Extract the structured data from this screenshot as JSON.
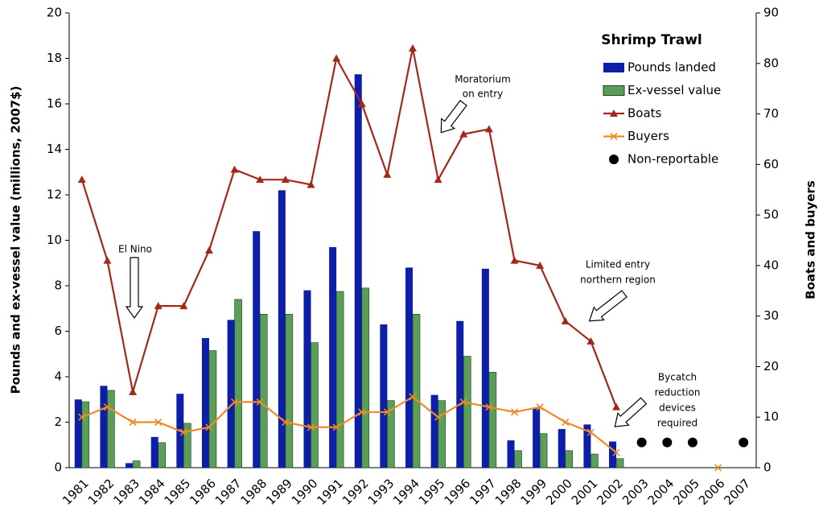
{
  "chart_data": {
    "type": "bar",
    "y_label": "Pounds and ex-vessel value (millions, 2007$)",
    "y2_label": "Boats and buyers",
    "legend_title": "Shrimp Trawl",
    "legend": "top-right",
    "categories": [
      "1981",
      "1982",
      "1983",
      "1984",
      "1985",
      "1986",
      "1987",
      "1988",
      "1989",
      "1990",
      "1991",
      "1992",
      "1993",
      "1994",
      "1995",
      "1996",
      "1997",
      "1998",
      "1999",
      "2000",
      "2001",
      "2002",
      "2003",
      "2004",
      "2005",
      "2006",
      "2007"
    ],
    "ylim": [
      0,
      20
    ],
    "yticks": [
      0,
      2,
      4,
      6,
      8,
      10,
      12,
      14,
      16,
      18,
      20
    ],
    "y2lim": [
      0,
      90
    ],
    "y2ticks": [
      0,
      10,
      20,
      30,
      40,
      50,
      60,
      70,
      80,
      90
    ],
    "series": [
      {
        "name": "Pounds landed",
        "type": "bar",
        "color": "#0d1ea8",
        "values": [
          3.0,
          3.6,
          0.2,
          1.35,
          3.25,
          5.7,
          6.5,
          10.4,
          12.2,
          7.8,
          9.7,
          17.3,
          6.3,
          8.8,
          3.2,
          6.45,
          8.75,
          1.2,
          2.6,
          1.7,
          1.9,
          1.15,
          null,
          null,
          null,
          null,
          null
        ]
      },
      {
        "name": "Ex-vessel value",
        "type": "bar",
        "color": "#5a9e5a",
        "values": [
          2.9,
          3.4,
          0.3,
          1.1,
          1.95,
          5.15,
          7.4,
          6.75,
          6.75,
          5.5,
          7.75,
          7.9,
          2.95,
          6.75,
          2.95,
          4.9,
          4.2,
          0.75,
          1.5,
          0.75,
          0.6,
          0.4,
          null,
          null,
          null,
          null,
          null
        ]
      },
      {
        "name": "Boats",
        "type": "line",
        "marker": "triangle",
        "axis": "y2",
        "color": "#a3281a",
        "values": [
          57,
          41,
          15,
          32,
          32,
          43,
          59,
          57,
          57,
          56,
          81,
          72,
          58,
          83,
          57,
          66,
          67,
          41,
          40,
          29,
          25,
          12,
          null,
          null,
          null,
          null,
          null
        ]
      },
      {
        "name": "Buyers",
        "type": "line",
        "marker": "x",
        "axis": "y2",
        "color": "#f08a24",
        "values": [
          10,
          12,
          9,
          9,
          7,
          8,
          13,
          13,
          9,
          8,
          8,
          11,
          11,
          14,
          10,
          13,
          12,
          11,
          12,
          9,
          7,
          3,
          null,
          null,
          null,
          0,
          null
        ]
      },
      {
        "name": "Non-reportable",
        "type": "scatter",
        "marker": "dot",
        "axis": "y2",
        "color": "#000000",
        "values": [
          null,
          null,
          null,
          null,
          null,
          null,
          null,
          null,
          null,
          null,
          null,
          null,
          null,
          null,
          null,
          null,
          null,
          null,
          null,
          null,
          null,
          null,
          5,
          5,
          5,
          null,
          5
        ]
      }
    ],
    "annotations": [
      {
        "lines": [
          "El Nino"
        ]
      },
      {
        "lines": [
          "Moratorium",
          "on entry"
        ]
      },
      {
        "lines": [
          "Limited entry",
          "northern region"
        ]
      },
      {
        "lines": [
          "Bycatch",
          "reduction",
          "devices",
          "required"
        ]
      }
    ]
  }
}
